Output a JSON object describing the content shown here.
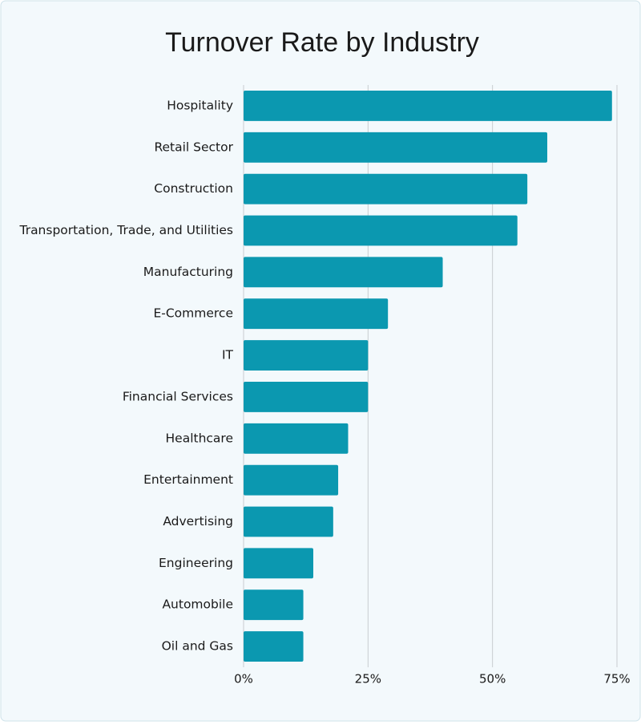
{
  "chart_data": {
    "type": "bar",
    "orientation": "horizontal",
    "title": "Turnover Rate by Industry",
    "categories": [
      "Hospitality",
      "Retail Sector",
      "Construction",
      "Transportation, Trade, and Utilities",
      "Manufacturing",
      "E-Commerce",
      "IT",
      "Financial Services",
      "Healthcare",
      "Entertainment",
      "Advertising",
      "Engineering",
      "Automobile",
      "Oil and Gas"
    ],
    "values": [
      74,
      61,
      57,
      55,
      40,
      29,
      25,
      25,
      21,
      19,
      18,
      14,
      12,
      12
    ],
    "color": "#0b98b0",
    "xlim": [
      0,
      75
    ],
    "xticks": [
      {
        "value": 0,
        "label": "0%"
      },
      {
        "value": 25,
        "label": "25%"
      },
      {
        "value": 50,
        "label": "50%"
      },
      {
        "value": 75,
        "label": "75%"
      }
    ],
    "grid": true
  }
}
